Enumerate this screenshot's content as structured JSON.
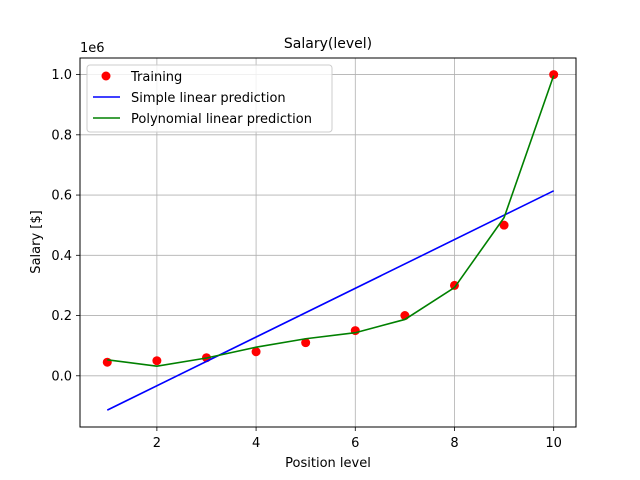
{
  "chart_data": {
    "type": "line",
    "title": "Salary(level)",
    "xlabel": "Position level",
    "ylabel": "Salary [$]",
    "y_offset_label": "1e6",
    "xlim": [
      0.45,
      10.45
    ],
    "ylim": [
      -0.17,
      1.055
    ],
    "x_ticks": [
      2,
      4,
      6,
      8,
      10
    ],
    "x_tick_labels": [
      "2",
      "4",
      "6",
      "8",
      "10"
    ],
    "y_ticks": [
      0.0,
      0.2,
      0.4,
      0.6,
      0.8,
      1.0
    ],
    "y_tick_labels": [
      "0.0",
      "0.2",
      "0.4",
      "0.6",
      "0.8",
      "1.0"
    ],
    "grid": true,
    "legend_position": "top-left",
    "series": [
      {
        "name": "Training",
        "kind": "scatter",
        "color": "#ff0000",
        "x": [
          1,
          2,
          3,
          4,
          5,
          6,
          7,
          8,
          9,
          10
        ],
        "y": [
          0.045,
          0.05,
          0.06,
          0.08,
          0.11,
          0.15,
          0.2,
          0.3,
          0.5,
          1.0
        ]
      },
      {
        "name": "Simple linear prediction",
        "kind": "line",
        "color": "#0000ff",
        "x": [
          1,
          10
        ],
        "y": [
          -0.114,
          0.614
        ]
      },
      {
        "name": "Polynomial linear prediction",
        "kind": "line",
        "color": "#008000",
        "x": [
          1,
          2,
          3,
          4,
          5,
          6,
          7,
          8,
          9,
          10
        ],
        "y": [
          0.053,
          0.032,
          0.059,
          0.095,
          0.123,
          0.143,
          0.187,
          0.293,
          0.525,
          0.997
        ]
      }
    ]
  }
}
